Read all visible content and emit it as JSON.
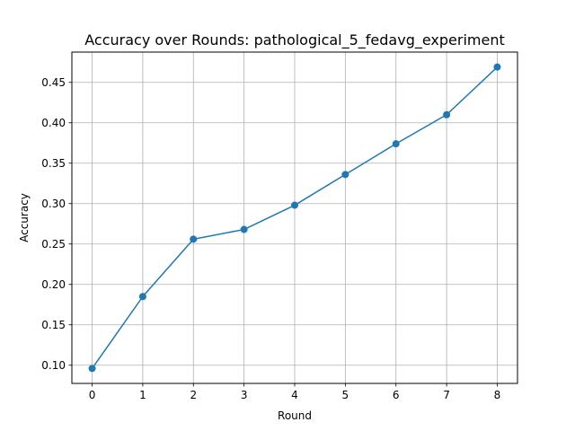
{
  "chart_data": {
    "type": "line",
    "title": "Accuracy over Rounds: pathological_5_fedavg_experiment",
    "xlabel": "Round",
    "ylabel": "Accuracy",
    "x": [
      0,
      1,
      2,
      3,
      4,
      5,
      6,
      7,
      8
    ],
    "series": [
      {
        "values": [
          0.096,
          0.185,
          0.256,
          0.268,
          0.298,
          0.336,
          0.374,
          0.41,
          0.469
        ],
        "color": "#1f77b4",
        "marker": "circle"
      }
    ],
    "xlim": [
      -0.4,
      8.4
    ],
    "ylim": [
      0.0775,
      0.4875
    ],
    "xticks": [
      "0",
      "1",
      "2",
      "3",
      "4",
      "5",
      "6",
      "7",
      "8"
    ],
    "yticks": [
      "0.10",
      "0.15",
      "0.20",
      "0.25",
      "0.30",
      "0.35",
      "0.40",
      "0.45"
    ],
    "grid": true,
    "grid_color": "#b0b0b0"
  }
}
